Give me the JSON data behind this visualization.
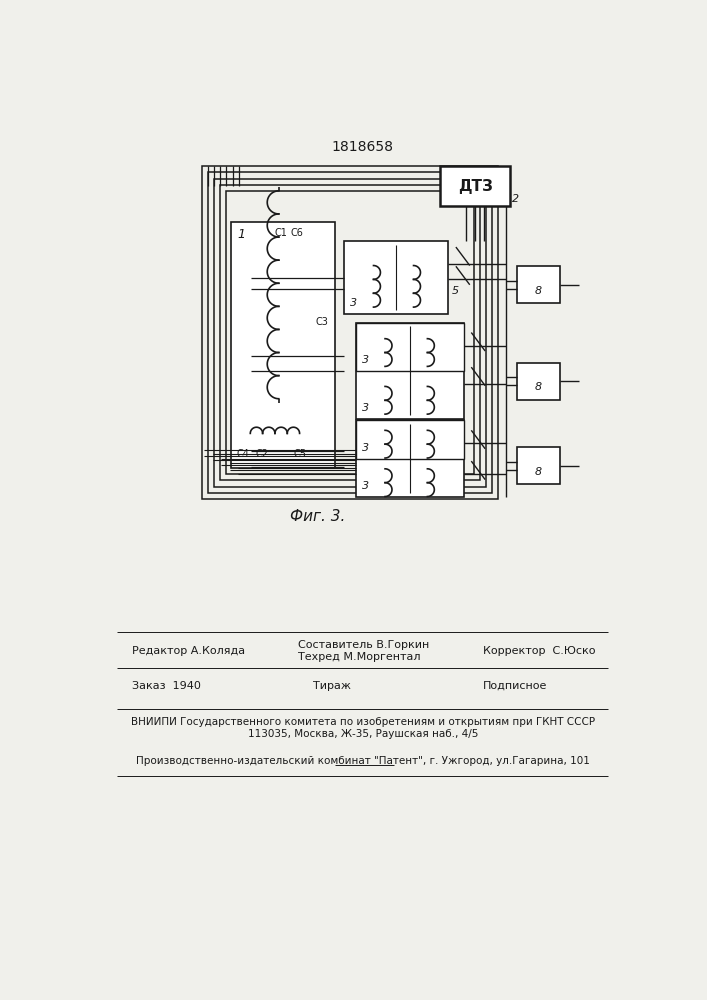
{
  "title": "1818658",
  "caption": "Фиг. 3.",
  "bg_color": "#f0f0eb",
  "line_color": "#1a1a1a",
  "footer": {
    "editor": "Редактор А.Коляда",
    "compiler_line1": "Составитель В.Горкин",
    "compiler_line2": "Техред М.Моргентал",
    "corrector": "Корректор  С.Юско",
    "order": "Заказ  1940",
    "tirazh": "Тираж",
    "podpisnoe": "Подписное",
    "vniipи": "ВНИИПИ Государственного комитета по изобретениям и открытиям при ГКНТ СССР",
    "address": "113035, Москва, Ж-35, Раушская наб., 4/5",
    "patent": "Производственно-издательский комбинат \"Патент\", г. Ужгород, ул.Гагарина, 101"
  }
}
